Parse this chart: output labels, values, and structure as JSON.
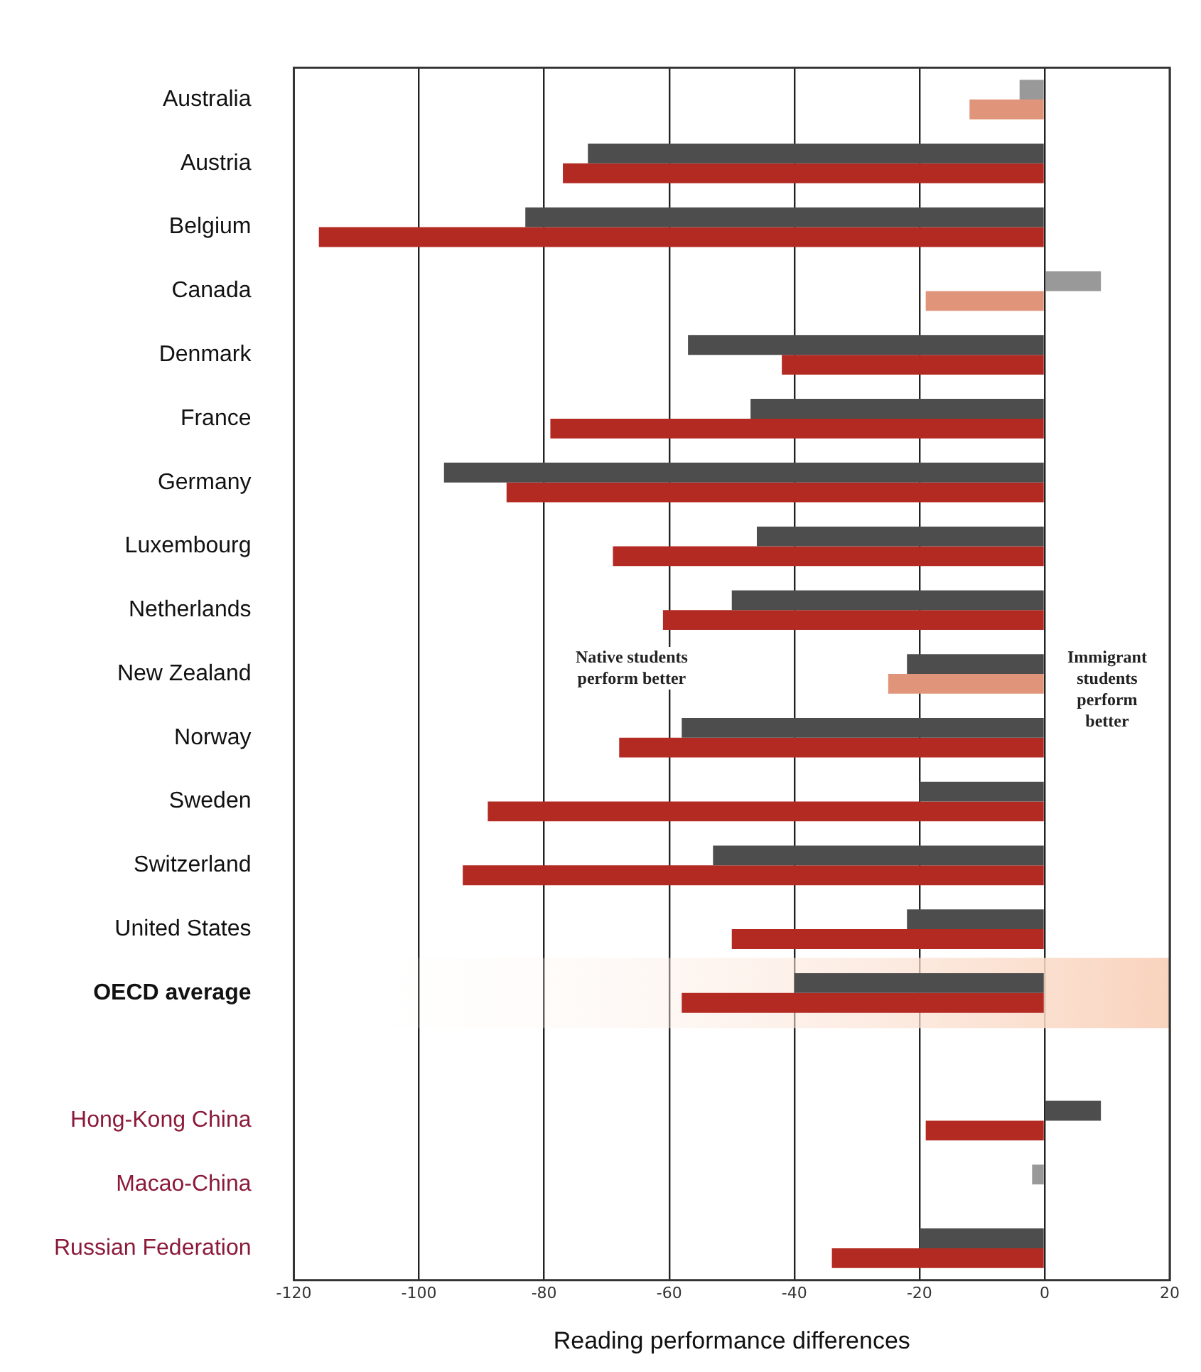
{
  "chart_data": {
    "type": "bar",
    "orientation": "horizontal",
    "xlabel": "Reading performance differences",
    "categories": [
      "Australia",
      "Austria",
      "Belgium",
      "Canada",
      "Denmark",
      "France",
      "Germany",
      "Luxembourg",
      "Netherlands",
      "New Zealand",
      "Norway",
      "Sweden",
      "Switzerland",
      "United States",
      "OECD average",
      null,
      "Hong-Kong China",
      "Macao-China",
      "Russian Federation"
    ],
    "series": [
      {
        "colors": [
          "#999999",
          "#4d4d4d",
          "#4d4d4d",
          "#999999",
          "#4d4d4d",
          "#4d4d4d",
          "#4d4d4d",
          "#4d4d4d",
          "#4d4d4d",
          "#4d4d4d",
          "#4d4d4d",
          "#4d4d4d",
          "#4d4d4d",
          "#4d4d4d",
          "#4d4d4d",
          null,
          "#4d4d4d",
          "#999999",
          "#4d4d4d"
        ],
        "values": [
          -4,
          -73,
          -83,
          9,
          -57,
          -47,
          -96,
          -46,
          -50,
          -22,
          -58,
          -20,
          -53,
          -22,
          -40,
          null,
          9,
          -2,
          -20
        ]
      },
      {
        "colors": [
          "#e0957a",
          "#b22a22",
          "#b22a22",
          "#e0957a",
          "#b22a22",
          "#b22a22",
          "#b22a22",
          "#b22a22",
          "#b22a22",
          "#e0957a",
          "#b22a22",
          "#b22a22",
          "#b22a22",
          "#b22a22",
          "#b22a22",
          null,
          "#b22a22",
          null,
          "#b22a22"
        ],
        "values": [
          -12,
          -77,
          -116,
          -19,
          -42,
          -79,
          -86,
          -69,
          -61,
          -25,
          -68,
          -89,
          -93,
          -50,
          -58,
          null,
          -19,
          null,
          -34
        ]
      }
    ],
    "xlim": [
      -120,
      20
    ],
    "xticks": [
      -120,
      -100,
      -80,
      -60,
      -40,
      -20,
      0,
      20
    ],
    "grid": "x",
    "legend": false,
    "bands": [
      {
        "axis": "y",
        "from": "OECD average",
        "to": "OECD average",
        "color": "#f9d3bd"
      }
    ],
    "annotations": [
      "Native students perform better",
      "Immigrant students perform better"
    ]
  }
}
